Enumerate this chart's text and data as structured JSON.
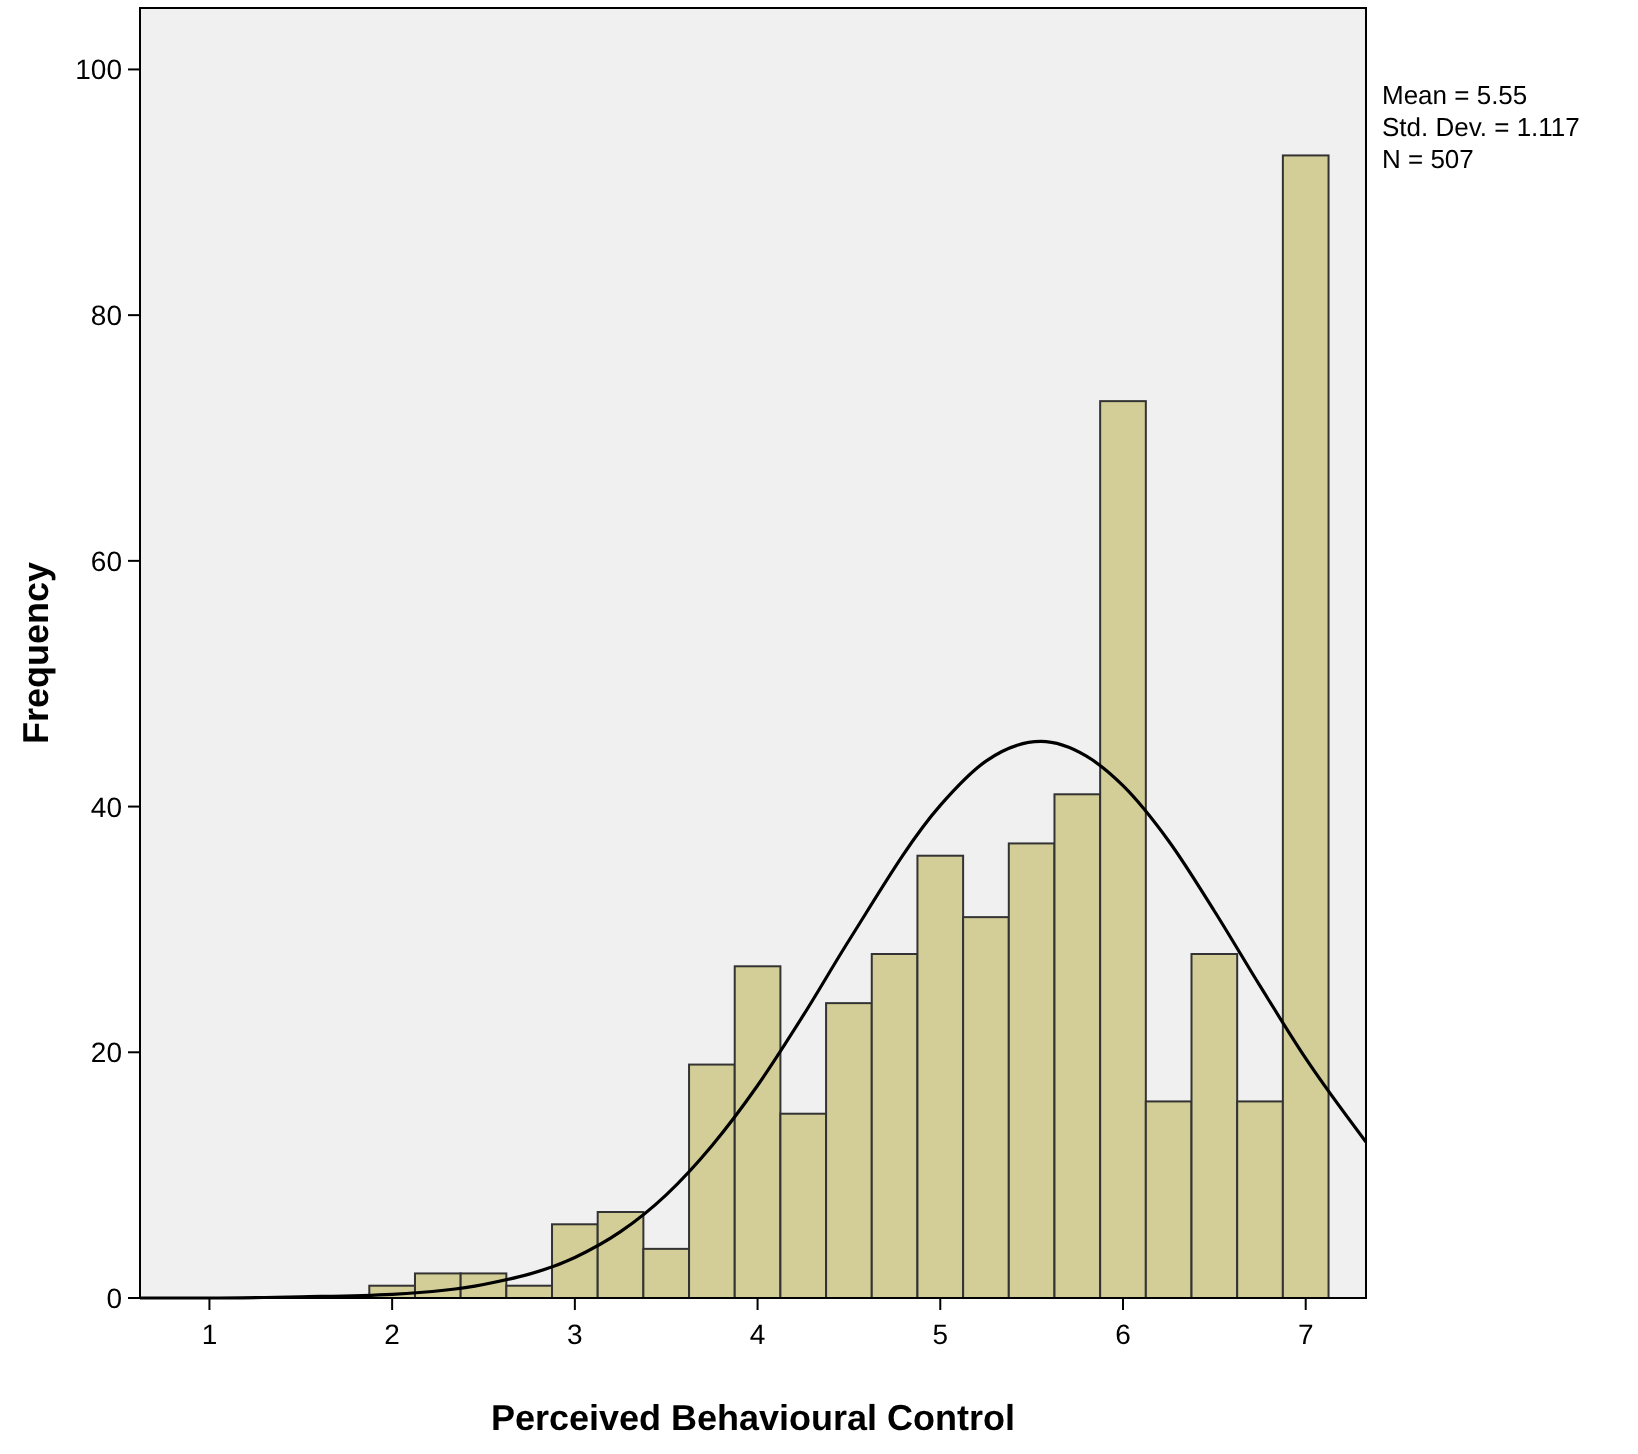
{
  "chart_data": {
    "type": "histogram",
    "xlabel": "Perceived Behavioural Control",
    "ylabel": "Frequency",
    "bins": [
      1.875,
      2.125,
      2.375,
      2.625,
      2.875,
      3.125,
      3.375,
      3.625,
      3.875,
      4.125,
      4.375,
      4.625,
      4.875,
      5.125,
      5.375,
      5.625,
      5.875,
      6.125,
      6.375,
      6.625,
      6.875,
      7.125
    ],
    "values": [
      1,
      2,
      2,
      1,
      6,
      7,
      4,
      19,
      27,
      15,
      24,
      28,
      36,
      31,
      37,
      41,
      73,
      16,
      28,
      16,
      93
    ],
    "color": "#d3ce97",
    "series": [
      {
        "type": "line",
        "color": "#000000",
        "x": [
          0.62,
          1,
          1.5,
          2,
          2.5,
          3,
          3.25,
          3.5,
          3.75,
          4,
          4.25,
          4.5,
          5,
          5.25,
          5.55,
          5.8,
          6,
          6.25,
          6.5,
          6.75,
          7,
          7.33
        ],
        "values": [
          0,
          0,
          0.1,
          0.3,
          1.1,
          3.3,
          5.4,
          8.4,
          12.4,
          17.3,
          23,
          29.1,
          40.1,
          43.7,
          45.3,
          44.1,
          41.7,
          37.2,
          31.5,
          25.4,
          19.5,
          12.7
        ]
      }
    ],
    "xlim": [
      0.62,
      7.33
    ],
    "ylim": [
      0,
      105
    ],
    "xticks": [
      1,
      2,
      3,
      4,
      5,
      6,
      7
    ],
    "yticks": [
      0,
      20,
      40,
      60,
      80,
      100
    ],
    "annotations": [
      "Mean = 5.55",
      "Std. Dev. = 1.117",
      "N = 507"
    ]
  }
}
